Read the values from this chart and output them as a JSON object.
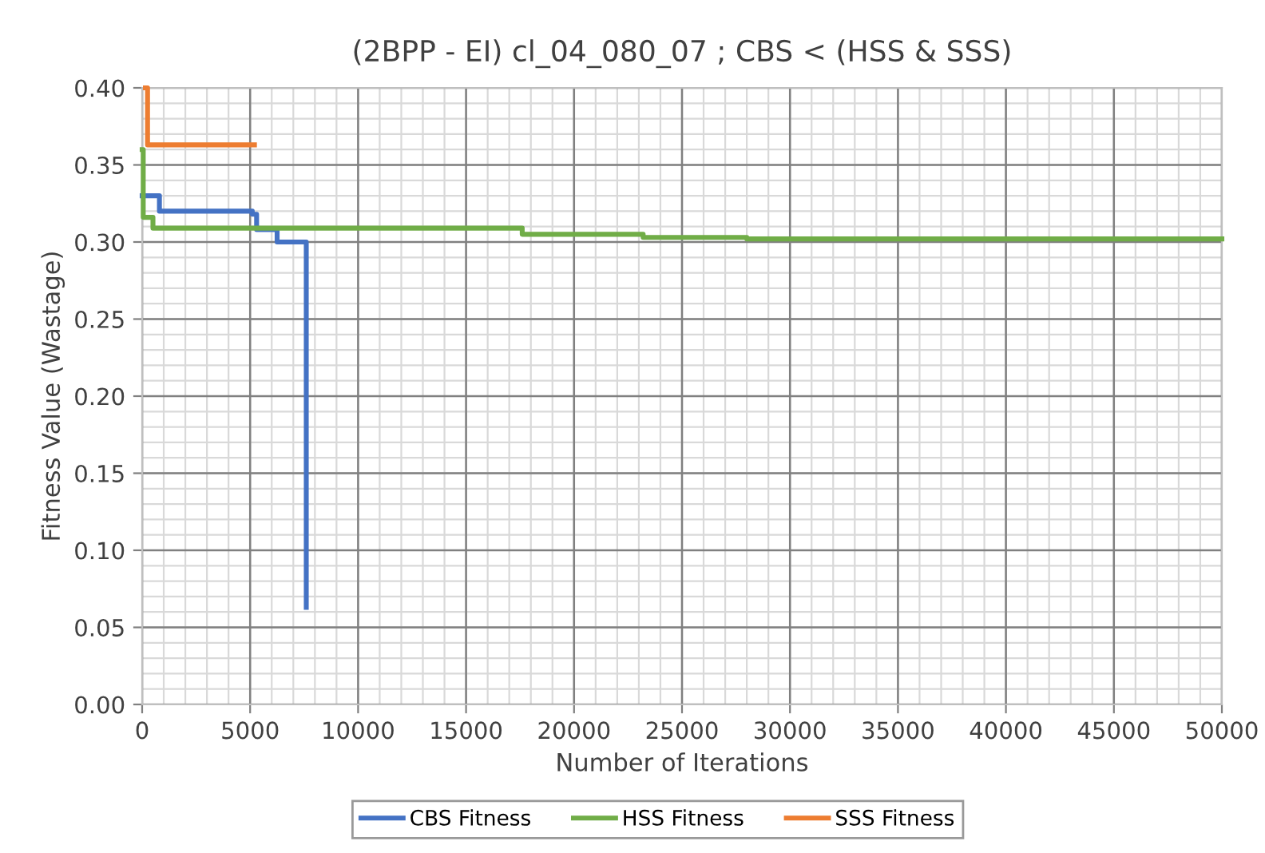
{
  "chart_data": {
    "type": "step",
    "title": "(2BPP - EI) cl_04_080_07 ; CBS < (HSS & SSS)",
    "xlabel": "Number of Iterations",
    "ylabel": "Fitness Value (Wastage)",
    "series": [
      {
        "name": "CBS Fitness",
        "color": "#4472c4",
        "x": [
          0,
          800,
          5100,
          5300,
          6250,
          7600,
          7600
        ],
        "values": [
          0.33,
          0.32,
          0.318,
          0.308,
          0.3,
          0.3,
          0.063
        ]
      },
      {
        "name": "HSS Fitness",
        "color": "#70ad47",
        "x": [
          0,
          50,
          500,
          17600,
          23200,
          28000,
          50000
        ],
        "values": [
          0.36,
          0.316,
          0.309,
          0.305,
          0.303,
          0.302,
          0.302
        ]
      },
      {
        "name": "SSS Fitness",
        "color": "#ed7d31",
        "x": [
          150,
          250,
          5200
        ],
        "values": [
          0.4,
          0.363,
          0.363
        ]
      }
    ],
    "xlim": [
      0,
      50000
    ],
    "xticks": [
      0,
      5000,
      10000,
      15000,
      20000,
      25000,
      30000,
      35000,
      40000,
      45000,
      50000
    ],
    "ylim": [
      0,
      0.4
    ],
    "yticks": [
      {
        "value": 0,
        "label": "0.00"
      },
      {
        "value": 0.05,
        "label": "0.05"
      },
      {
        "value": 0.1,
        "label": "0.10"
      },
      {
        "value": 0.15,
        "label": "0.15"
      },
      {
        "value": 0.2,
        "label": "0.20"
      },
      {
        "value": 0.25,
        "label": "0.25"
      },
      {
        "value": 0.3,
        "label": "0.30"
      },
      {
        "value": 0.35,
        "label": "0.35"
      },
      {
        "value": 0.4,
        "label": "0.40"
      }
    ],
    "grid": true,
    "legend": "bottom",
    "line_style": "solid",
    "marker": "none"
  }
}
